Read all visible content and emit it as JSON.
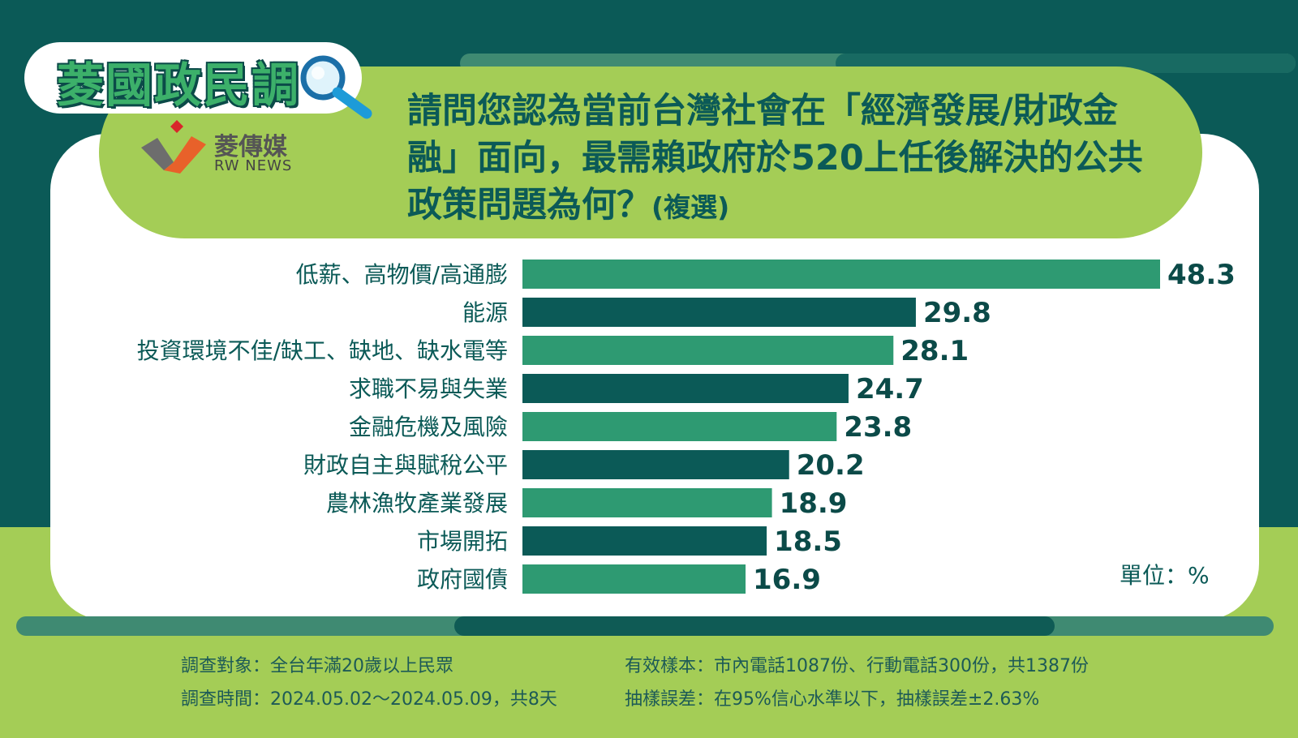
{
  "header": {
    "logo_text": "菱國政民調",
    "brand_name": "菱傳媒",
    "brand_sub": "RW NEWS",
    "question_main": "請問您認為當前台灣社會在「經濟發展/財政金融」面向，最需賴政府於520上任後解決的公共政策問題為何？",
    "question_suffix": "(複選)"
  },
  "chart_data": {
    "type": "bar",
    "orientation": "horizontal",
    "categories": [
      "低薪、高物價/高通膨",
      "能源",
      "投資環境不佳/缺工、缺地、缺水電等",
      "求職不易與失業",
      "金融危機及風險",
      "財政自主與賦稅公平",
      "農林漁牧產業發展",
      "市場開拓",
      "政府國債"
    ],
    "values": [
      48.3,
      29.8,
      28.1,
      24.7,
      23.8,
      20.2,
      18.9,
      18.5,
      16.9
    ],
    "value_labels": [
      "48.3",
      "29.8",
      "28.1",
      "24.7",
      "23.8",
      "20.2",
      "18.9",
      "18.5",
      "16.9"
    ],
    "bar_colors": [
      "#2e9a72",
      "#0b5a57"
    ],
    "unit_label": "單位：%",
    "grid": false
  },
  "footer": {
    "target": "調查對象：全台年滿20歲以上民眾",
    "period": "調查時間：2024.05.02～2024.05.09，共8天",
    "sample": "有效樣本：市內電話1087份、行動電話300份，共1387份",
    "error": "抽樣誤差：在95%信心水準以下，抽樣誤差±2.63%"
  }
}
